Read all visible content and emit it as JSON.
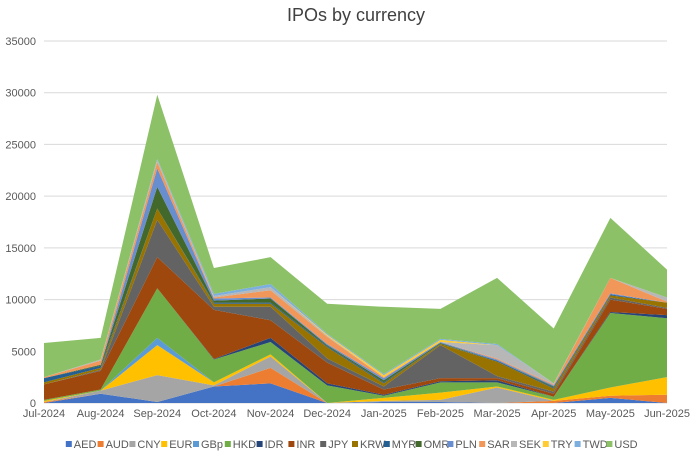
{
  "chart_data": {
    "type": "area",
    "stacked": true,
    "title": "IPOs by currency",
    "xlabel": "",
    "ylabel": "",
    "ylim": [
      0,
      35000
    ],
    "yticks": [
      "0",
      "5000",
      "10000",
      "15000",
      "20000",
      "25000",
      "30000",
      "35000"
    ],
    "grid": true,
    "legend_position": "bottom",
    "categories": [
      "Jul-2024",
      "Aug-2024",
      "Sep-2024",
      "Oct-2024",
      "Nov-2024",
      "Dec-2024",
      "Jan-2025",
      "Feb-2025",
      "Mar-2025",
      "Apr-2025",
      "May-2025",
      "Jun-2025"
    ],
    "series": [
      {
        "name": "AED",
        "color": "#4472C4",
        "values": [
          0,
          900,
          100,
          1600,
          1900,
          0,
          100,
          100,
          0,
          0,
          500,
          0
        ]
      },
      {
        "name": "AUD",
        "color": "#ED7D31",
        "values": [
          100,
          0,
          0,
          0,
          1500,
          0,
          0,
          0,
          0,
          200,
          200,
          800
        ]
      },
      {
        "name": "CNY",
        "color": "#A5A5A5",
        "values": [
          0,
          300,
          2600,
          100,
          1100,
          0,
          100,
          200,
          1500,
          0,
          0,
          0
        ]
      },
      {
        "name": "EUR",
        "color": "#FFC000",
        "values": [
          100,
          0,
          2900,
          300,
          200,
          0,
          300,
          700,
          100,
          100,
          800,
          1700
        ]
      },
      {
        "name": "GBp",
        "color": "#5B9BD5",
        "values": [
          0,
          0,
          700,
          0,
          0,
          0,
          0,
          0,
          0,
          0,
          0,
          0
        ]
      },
      {
        "name": "HKD",
        "color": "#70AD47",
        "values": [
          100,
          100,
          4800,
          2200,
          1200,
          1700,
          200,
          1000,
          400,
          300,
          7200,
          5700
        ]
      },
      {
        "name": "IDR",
        "color": "#264478",
        "values": [
          0,
          0,
          0,
          50,
          400,
          200,
          100,
          100,
          200,
          0,
          100,
          300
        ]
      },
      {
        "name": "INR",
        "color": "#9E480E",
        "values": [
          1500,
          1800,
          3000,
          4750,
          1700,
          2000,
          500,
          300,
          200,
          300,
          1200,
          600
        ]
      },
      {
        "name": "JPY",
        "color": "#636363",
        "values": [
          0,
          100,
          3600,
          300,
          1300,
          400,
          300,
          3200,
          200,
          200,
          200,
          100
        ]
      },
      {
        "name": "KRW",
        "color": "#997300",
        "values": [
          200,
          200,
          1100,
          300,
          300,
          1100,
          300,
          100,
          1400,
          300,
          200,
          500
        ]
      },
      {
        "name": "MYR",
        "color": "#255E91",
        "values": [
          400,
          200,
          0,
          100,
          100,
          100,
          100,
          0,
          100,
          100,
          100,
          0
        ]
      },
      {
        "name": "OMR",
        "color": "#43682B",
        "values": [
          0,
          100,
          2100,
          200,
          400,
          100,
          200,
          100,
          0,
          100,
          0,
          0
        ]
      },
      {
        "name": "PLN",
        "color": "#698ED0",
        "values": [
          0,
          0,
          1800,
          200,
          100,
          100,
          200,
          100,
          100,
          100,
          100,
          0
        ]
      },
      {
        "name": "SAR",
        "color": "#F1975A",
        "values": [
          100,
          400,
          600,
          100,
          700,
          700,
          100,
          0,
          100,
          100,
          1500,
          100
        ]
      },
      {
        "name": "SEK",
        "color": "#B7B7B7",
        "values": [
          0,
          100,
          200,
          150,
          300,
          100,
          0,
          0,
          1300,
          100,
          0,
          400
        ]
      },
      {
        "name": "TRY",
        "color": "#FFCD33",
        "values": [
          0,
          0,
          0,
          0,
          0,
          100,
          200,
          200,
          0,
          0,
          0,
          0
        ]
      },
      {
        "name": "TWD",
        "color": "#7CAFDD",
        "values": [
          0,
          0,
          100,
          200,
          300,
          100,
          100,
          100,
          100,
          0,
          0,
          0
        ]
      },
      {
        "name": "USD",
        "color": "#8CC168",
        "values": [
          3300,
          2100,
          6200,
          2500,
          2600,
          2900,
          6500,
          2900,
          6400,
          5300,
          5800,
          2700
        ]
      }
    ]
  }
}
